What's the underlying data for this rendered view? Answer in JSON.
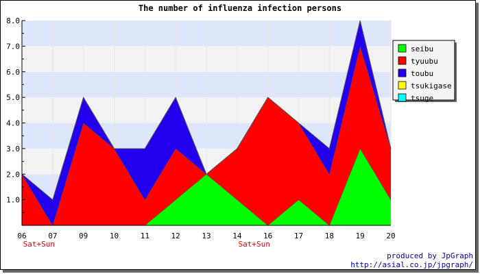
{
  "chart_data": {
    "type": "area",
    "stacked": true,
    "title": "The number of influenza infection persons",
    "xlabel": "",
    "ylabel": "",
    "categories": [
      "06",
      "07",
      "09",
      "10",
      "11",
      "12",
      "13",
      "14",
      "16",
      "17",
      "18",
      "19",
      "20"
    ],
    "weekend_labels": [
      "Sat+Sun",
      "",
      "",
      "",
      "",
      "",
      "",
      "Sat+Sun",
      "",
      "",
      "",
      "",
      ""
    ],
    "ylim": [
      0,
      8
    ],
    "yticks": [
      "1.0",
      "2.0",
      "3.0",
      "4.0",
      "5.0",
      "6.0",
      "7.0",
      "8.0"
    ],
    "grid": true,
    "legend_position": "right",
    "series": [
      {
        "name": "seibu",
        "color": "#00ff00",
        "values": [
          0,
          0,
          0,
          0,
          0,
          1,
          2,
          1,
          0,
          1,
          0,
          3,
          1
        ]
      },
      {
        "name": "tyuubu",
        "color": "#ff0000",
        "values": [
          2,
          0,
          4,
          3,
          1,
          2,
          0,
          2,
          5,
          3,
          2,
          4,
          2
        ]
      },
      {
        "name": "toubu",
        "color": "#2200ee",
        "values": [
          0,
          1,
          1,
          0,
          2,
          2,
          0,
          0,
          0,
          0,
          1,
          1,
          0
        ]
      },
      {
        "name": "tsukigase",
        "color": "#ffff00",
        "values": [
          0,
          0,
          0,
          0,
          0,
          0,
          0,
          0,
          0,
          0,
          0,
          0,
          0
        ]
      },
      {
        "name": "tsuge",
        "color": "#00ffff",
        "values": [
          0,
          0,
          0,
          0,
          0,
          0,
          0,
          0,
          0,
          0,
          0,
          0,
          0
        ]
      }
    ],
    "band_colors": [
      "#f2f2f2",
      "#dde6fb"
    ]
  },
  "footer": {
    "credit": "produced by JpGraph",
    "url": "http://asial.co.jp/jpgraph/"
  }
}
